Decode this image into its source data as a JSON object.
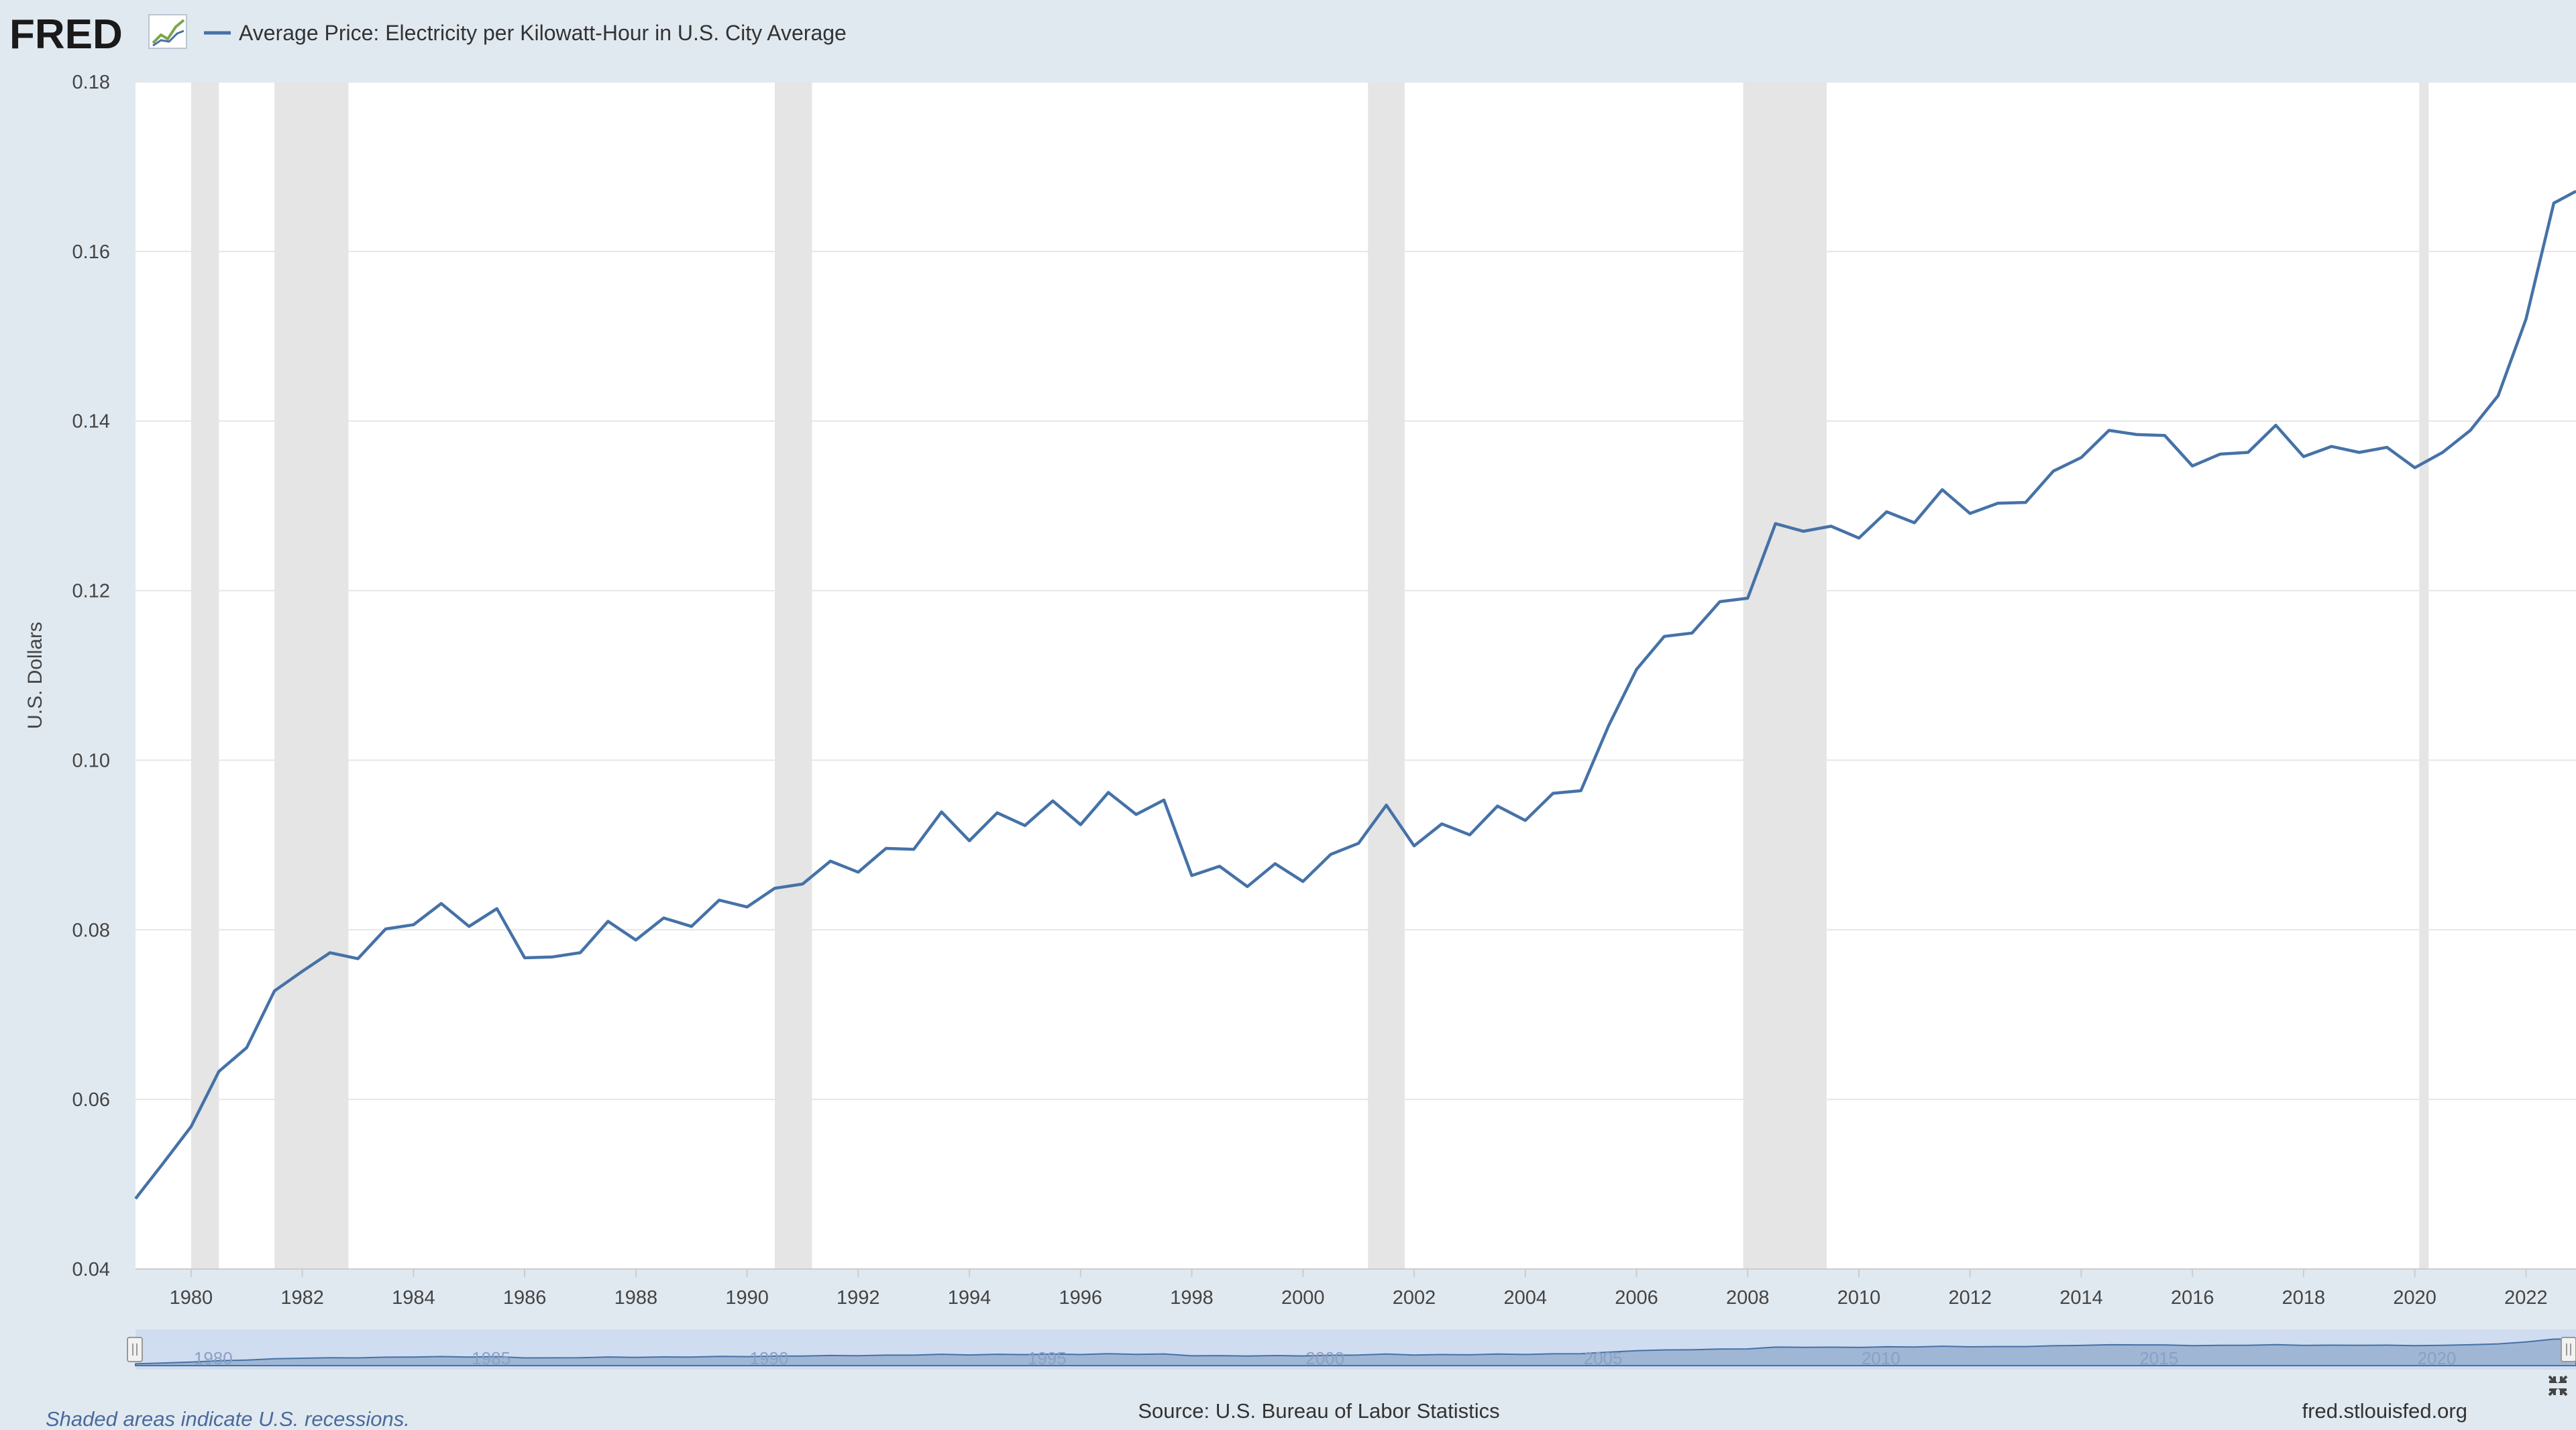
{
  "header": {
    "logo_text": "FRED",
    "legend_label": "Average Price: Electricity per Kilowatt-Hour in U.S. City Average"
  },
  "footer": {
    "recession_note": "Shaded areas indicate U.S. recessions.",
    "source": "Source: U.S. Bureau of Labor Statistics",
    "site": "fred.stlouisfed.org"
  },
  "colors": {
    "line": "#4572a7",
    "recession": "#e5e5e5",
    "grid": "#e6e6e6",
    "page_bg": "#e1e9f0",
    "plot_bg": "#ffffff",
    "navigator_fill": "#aac0e2",
    "navigator_line": "#4572a7"
  },
  "navigator": {
    "labels": [
      "1980",
      "1985",
      "1990",
      "1995",
      "2000",
      "2005",
      "2010",
      "2015",
      "2020"
    ]
  },
  "chart_data": {
    "type": "line",
    "ylabel": "U.S. Dollars",
    "xlabel": "",
    "ylim": [
      0.04,
      0.18
    ],
    "xlim": [
      1979.0,
      2022.9
    ],
    "yticks": [
      "0.04",
      "0.06",
      "0.08",
      "0.10",
      "0.12",
      "0.14",
      "0.16",
      "0.18"
    ],
    "xticks": [
      "1980",
      "1982",
      "1984",
      "1986",
      "1988",
      "1990",
      "1992",
      "1994",
      "1996",
      "1998",
      "2000",
      "2002",
      "2004",
      "2006",
      "2008",
      "2010",
      "2012",
      "2014",
      "2016",
      "2018",
      "2020",
      "2022"
    ],
    "recessions": [
      [
        1980.0,
        1980.5
      ],
      [
        1981.5,
        1982.83
      ],
      [
        1990.5,
        1991.17
      ],
      [
        2001.17,
        2001.83
      ],
      [
        2007.92,
        2009.42
      ],
      [
        2020.08,
        2020.25
      ]
    ],
    "grid": true,
    "series": [
      {
        "name": "Average Price: Electricity per Kilowatt-Hour in U.S. City Average",
        "x": [
          1979.0,
          1979.5,
          1980.0,
          1980.5,
          1981.0,
          1981.5,
          1982.0,
          1982.5,
          1983.0,
          1983.5,
          1984.0,
          1984.5,
          1985.0,
          1985.5,
          1986.0,
          1986.5,
          1987.0,
          1987.5,
          1988.0,
          1988.5,
          1989.0,
          1989.5,
          1990.0,
          1990.5,
          1991.0,
          1991.5,
          1992.0,
          1992.5,
          1993.0,
          1993.5,
          1994.0,
          1994.5,
          1995.0,
          1995.5,
          1996.0,
          1996.5,
          1997.0,
          1997.5,
          1998.0,
          1998.5,
          1999.0,
          1999.5,
          2000.0,
          2000.5,
          2001.0,
          2001.5,
          2002.0,
          2002.5,
          2003.0,
          2003.5,
          2004.0,
          2004.5,
          2005.0,
          2005.5,
          2006.0,
          2006.5,
          2007.0,
          2007.5,
          2008.0,
          2008.5,
          2009.0,
          2009.5,
          2010.0,
          2010.5,
          2011.0,
          2011.5,
          2012.0,
          2012.5,
          2013.0,
          2013.5,
          2014.0,
          2014.5,
          2015.0,
          2015.5,
          2016.0,
          2016.5,
          2017.0,
          2017.5,
          2018.0,
          2018.5,
          2019.0,
          2019.5,
          2020.0,
          2020.5,
          2021.0,
          2021.5,
          2022.0,
          2022.5,
          2022.9
        ],
        "values": [
          0.0483,
          0.0525,
          0.0568,
          0.0633,
          0.0661,
          0.0728,
          0.0751,
          0.0773,
          0.0766,
          0.0801,
          0.0806,
          0.0831,
          0.0804,
          0.0825,
          0.0767,
          0.0768,
          0.0773,
          0.081,
          0.0788,
          0.0814,
          0.0804,
          0.0835,
          0.0827,
          0.0849,
          0.0854,
          0.0881,
          0.0868,
          0.0896,
          0.0895,
          0.0939,
          0.0905,
          0.0938,
          0.0923,
          0.0952,
          0.0924,
          0.0962,
          0.0936,
          0.0953,
          0.0864,
          0.0875,
          0.0851,
          0.0878,
          0.0857,
          0.0889,
          0.0902,
          0.0947,
          0.0899,
          0.0925,
          0.0912,
          0.0946,
          0.0929,
          0.0961,
          0.0964,
          0.1041,
          0.1107,
          0.1146,
          0.115,
          0.1187,
          0.1191,
          0.1279,
          0.127,
          0.1276,
          0.1262,
          0.1293,
          0.128,
          0.1319,
          0.1291,
          0.1303,
          0.1304,
          0.1341,
          0.1357,
          0.1389,
          0.1384,
          0.1383,
          0.1347,
          0.1361,
          0.1363,
          0.1395,
          0.1358,
          0.137,
          0.1363,
          0.1369,
          0.1345,
          0.1363,
          0.1389,
          0.143,
          0.152,
          0.1657,
          0.1671
        ]
      }
    ]
  }
}
